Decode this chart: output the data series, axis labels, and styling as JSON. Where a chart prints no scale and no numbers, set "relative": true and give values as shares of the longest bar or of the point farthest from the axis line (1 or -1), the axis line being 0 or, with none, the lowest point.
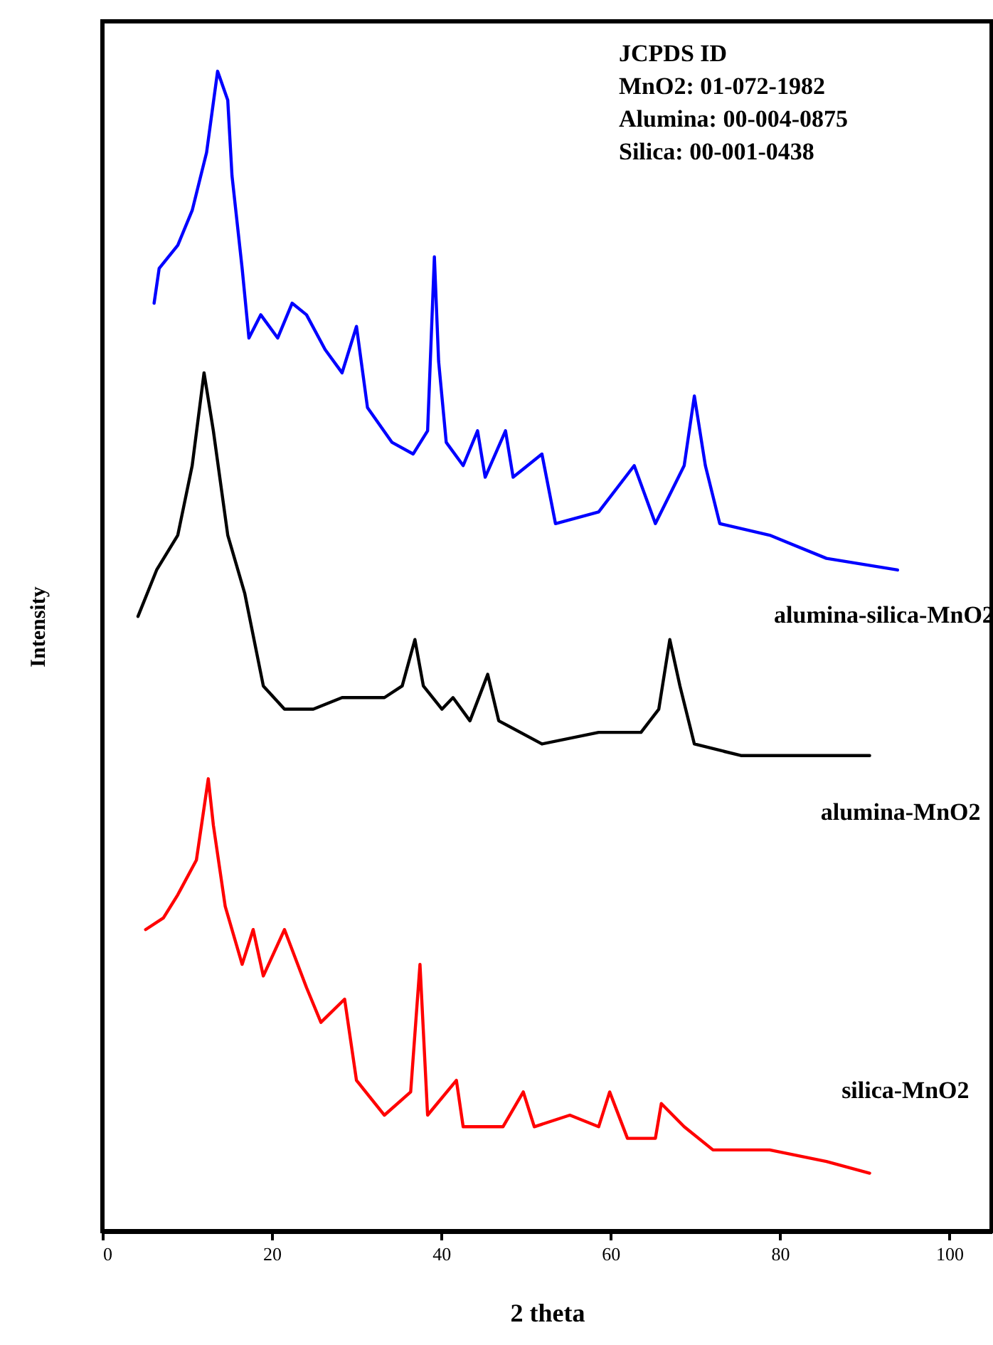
{
  "chart_data": {
    "type": "line",
    "relative": true,
    "xlabel": "2 theta",
    "ylabel": "Intensity",
    "xlim": [
      0,
      105
    ],
    "xticks": [
      0,
      20,
      40,
      60,
      80,
      100
    ],
    "grid": false,
    "marker": "none",
    "line_style": "solid",
    "annotations": [
      "JCPDS ID",
      "MnO2: 01-072-1982",
      "Alumina: 00-004-0875",
      "Silica: 00-001-0438"
    ],
    "series": [
      {
        "name": "alumina-silica-MnO2",
        "color": "#0000ff",
        "x": [
          6.1,
          6.7,
          8.9,
          10.6,
          12.3,
          13.6,
          14.8,
          15.3,
          16.5,
          17.3,
          18.7,
          20.7,
          22.4,
          24.1,
          26.3,
          28.3,
          30.0,
          31.3,
          34.2,
          36.7,
          38.4,
          39.2,
          39.7,
          40.6,
          42.6,
          44.3,
          45.2,
          47.6,
          48.5,
          51.9,
          53.5,
          58.6,
          62.8,
          65.3,
          68.7,
          69.9,
          71.2,
          72.9,
          78.8,
          85.5,
          93.9
        ],
        "values": [
          0.8,
          0.83,
          0.85,
          0.88,
          0.93,
          1.0,
          0.975,
          0.91,
          0.83,
          0.77,
          0.79,
          0.77,
          0.8,
          0.79,
          0.76,
          0.74,
          0.78,
          0.71,
          0.68,
          0.67,
          0.69,
          0.84,
          0.75,
          0.68,
          0.66,
          0.69,
          0.65,
          0.69,
          0.65,
          0.67,
          0.61,
          0.62,
          0.66,
          0.61,
          0.66,
          0.72,
          0.66,
          0.61,
          0.6,
          0.58,
          0.57
        ]
      },
      {
        "name": "alumina-MnO2",
        "color": "#000000",
        "x": [
          4.2,
          6.4,
          8.9,
          10.6,
          12.0,
          13.1,
          14.8,
          16.8,
          19.0,
          21.5,
          24.9,
          28.3,
          33.3,
          35.4,
          36.9,
          37.9,
          40.1,
          41.4,
          43.4,
          45.5,
          46.8,
          51.9,
          58.6,
          61.1,
          63.6,
          65.7,
          67.0,
          68.2,
          69.9,
          75.4,
          85.5,
          90.6
        ],
        "values": [
          0.53,
          0.57,
          0.6,
          0.66,
          0.74,
          0.69,
          0.6,
          0.55,
          0.47,
          0.45,
          0.45,
          0.46,
          0.46,
          0.47,
          0.51,
          0.47,
          0.45,
          0.46,
          0.44,
          0.48,
          0.44,
          0.42,
          0.43,
          0.43,
          0.43,
          0.45,
          0.51,
          0.47,
          0.42,
          0.41,
          0.41,
          0.41
        ]
      },
      {
        "name": "silica-MnO2",
        "color": "#ff0000",
        "x": [
          5.1,
          7.2,
          8.9,
          11.1,
          12.5,
          13.1,
          14.5,
          16.5,
          17.8,
          19.0,
          21.5,
          24.1,
          25.8,
          28.6,
          30.0,
          33.3,
          36.4,
          37.5,
          38.4,
          41.8,
          42.6,
          47.3,
          49.7,
          51.0,
          55.2,
          58.6,
          59.9,
          62.0,
          65.3,
          66.0,
          68.7,
          72.1,
          78.8,
          85.5,
          90.6
        ],
        "values": [
          0.26,
          0.27,
          0.29,
          0.32,
          0.39,
          0.35,
          0.28,
          0.23,
          0.26,
          0.22,
          0.26,
          0.21,
          0.18,
          0.2,
          0.13,
          0.1,
          0.12,
          0.23,
          0.1,
          0.13,
          0.09,
          0.09,
          0.12,
          0.09,
          0.1,
          0.09,
          0.12,
          0.08,
          0.08,
          0.11,
          0.09,
          0.07,
          0.07,
          0.06,
          0.05
        ]
      }
    ]
  }
}
